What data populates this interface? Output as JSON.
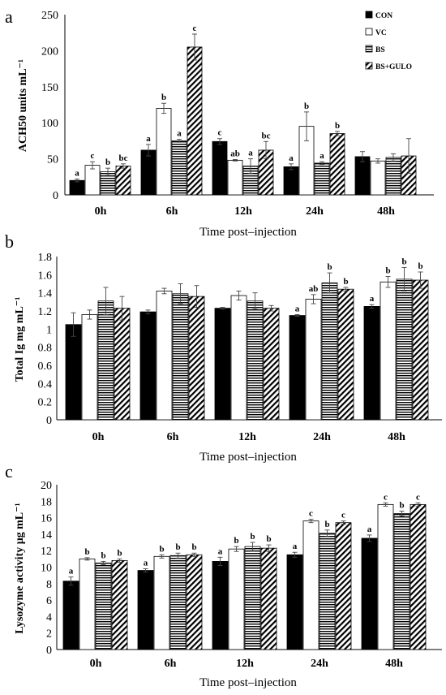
{
  "colors": {
    "CON": "#000000",
    "VC": "#ffffff",
    "BS": "horizontal-stripes",
    "BS+GULO": "diagonal-stripes"
  },
  "chart_data": [
    {
      "panel": "a",
      "type": "bar",
      "categories": [
        "0h",
        "6h",
        "12h",
        "24h",
        "48h"
      ],
      "xlabel": "Time post–injection",
      "ylabel": "ACH50 units mL⁻¹",
      "ylim": [
        0,
        250
      ],
      "yticks": [
        0,
        50,
        100,
        150,
        200,
        250
      ],
      "legend_position": "top-right",
      "series": [
        {
          "name": "CON",
          "values": [
            20,
            62,
            74,
            39,
            53
          ],
          "errors": [
            2,
            8,
            4,
            4,
            7
          ],
          "labels": [
            "a",
            "a",
            "c",
            "a",
            ""
          ]
        },
        {
          "name": "VC",
          "values": [
            41,
            120,
            48,
            95,
            47
          ],
          "errors": [
            5,
            7,
            1,
            20,
            3
          ],
          "labels": [
            "c",
            "b",
            "ab",
            "b",
            ""
          ]
        },
        {
          "name": "BS",
          "values": [
            32,
            75,
            40,
            44,
            52
          ],
          "errors": [
            5,
            2,
            10,
            2,
            5
          ],
          "labels": [
            "b",
            "a",
            "a",
            "a",
            ""
          ]
        },
        {
          "name": "BS+GULO",
          "values": [
            40,
            205,
            62,
            85,
            54
          ],
          "errors": [
            3,
            18,
            12,
            3,
            24
          ],
          "labels": [
            "bc",
            "c",
            "bc",
            "b",
            ""
          ]
        }
      ]
    },
    {
      "panel": "b",
      "type": "bar",
      "categories": [
        "0h",
        "6h",
        "12h",
        "24h",
        "48h"
      ],
      "xlabel": "Time post–injection",
      "ylabel": "Total Ig mg mL⁻¹",
      "ylim": [
        0,
        1.8
      ],
      "yticks": [
        "0",
        "0.2",
        "0.4",
        "0.6",
        "0.8",
        "1",
        "1.2",
        "1.4",
        "1.6",
        "1.8"
      ],
      "series": [
        {
          "name": "CON",
          "values": [
            1.05,
            1.19,
            1.23,
            1.15,
            1.25
          ],
          "errors": [
            0.13,
            0.02,
            0.01,
            0.01,
            0.02
          ],
          "labels": [
            "",
            "",
            "",
            "a",
            "a"
          ]
        },
        {
          "name": "VC",
          "values": [
            1.16,
            1.42,
            1.37,
            1.33,
            1.52
          ],
          "errors": [
            0.05,
            0.03,
            0.05,
            0.05,
            0.06
          ],
          "labels": [
            "",
            "",
            "",
            "ab",
            "b"
          ]
        },
        {
          "name": "BS",
          "values": [
            1.31,
            1.39,
            1.31,
            1.51,
            1.55
          ],
          "errors": [
            0.15,
            0.11,
            0.09,
            0.11,
            0.13
          ],
          "labels": [
            "",
            "",
            "",
            "b",
            "b"
          ]
        },
        {
          "name": "BS+GULO",
          "values": [
            1.23,
            1.36,
            1.23,
            1.44,
            1.54
          ],
          "errors": [
            0.13,
            0.12,
            0.03,
            0.02,
            0.09
          ],
          "labels": [
            "",
            "",
            "",
            "b",
            "b"
          ]
        }
      ]
    },
    {
      "panel": "c",
      "type": "bar",
      "categories": [
        "0h",
        "6h",
        "12h",
        "24h",
        "48h"
      ],
      "xlabel": "Time post–injection",
      "ylabel": "Lysozyme activity μg mL⁻¹",
      "ylim": [
        0,
        20
      ],
      "yticks": [
        0,
        2,
        4,
        6,
        8,
        10,
        12,
        14,
        16,
        18,
        20
      ],
      "series": [
        {
          "name": "CON",
          "values": [
            8.3,
            9.6,
            10.7,
            11.5,
            13.5
          ],
          "errors": [
            0.5,
            0.2,
            0.5,
            0.3,
            0.4
          ],
          "labels": [
            "a",
            "a",
            "a",
            "a",
            "a"
          ]
        },
        {
          "name": "VC",
          "values": [
            11.0,
            11.3,
            12.2,
            15.6,
            17.6
          ],
          "errors": [
            0.15,
            0.2,
            0.3,
            0.2,
            0.2
          ],
          "labels": [
            "b",
            "b",
            "b",
            "c",
            "c"
          ]
        },
        {
          "name": "BS",
          "values": [
            10.5,
            11.4,
            12.5,
            14.1,
            16.5
          ],
          "errors": [
            0.2,
            0.3,
            0.5,
            0.4,
            0.3
          ],
          "labels": [
            "b",
            "b",
            "b",
            "b",
            "b"
          ]
        },
        {
          "name": "BS+GULO",
          "values": [
            10.8,
            11.5,
            12.3,
            15.4,
            17.6
          ],
          "errors": [
            0.2,
            0.2,
            0.4,
            0.2,
            0.2
          ],
          "labels": [
            "b",
            "b",
            "b",
            "c",
            "c"
          ]
        }
      ]
    }
  ]
}
